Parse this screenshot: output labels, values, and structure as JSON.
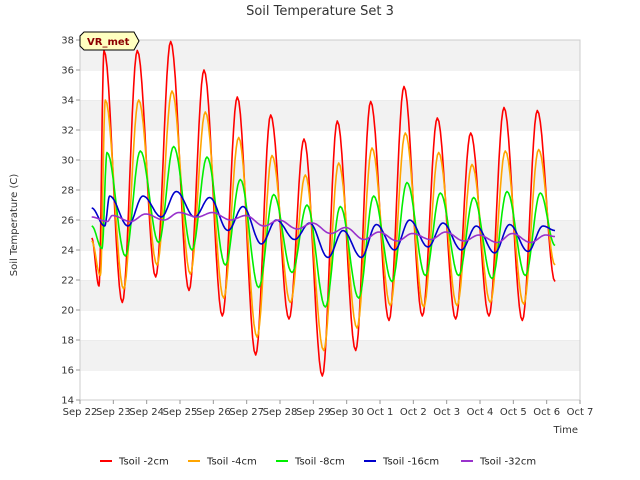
{
  "chart_data": {
    "type": "line",
    "title": "Soil Temperature Set 3",
    "site_label": "VR_met",
    "xlabel": "Time",
    "ylabel": "Soil Temperature (C)",
    "xlim": [
      "Sep 22",
      "Oct 7"
    ],
    "ylim": [
      14,
      38
    ],
    "y_ticks": [
      14,
      16,
      18,
      20,
      22,
      24,
      26,
      28,
      30,
      32,
      34,
      36,
      38
    ],
    "x_tick_labels": [
      "Sep 22",
      "Sep 23",
      "Sep 24",
      "Sep 25",
      "Sep 26",
      "Sep 27",
      "Sep 28",
      "Sep 29",
      "Sep 30",
      "Oct 1",
      "Oct 2",
      "Oct 3",
      "Oct 4",
      "Oct 5",
      "Oct 6",
      "Oct 7"
    ],
    "grid": "horizontal-bands",
    "legend_position": "bottom",
    "series": [
      {
        "name": "Tsoil -2cm",
        "color": "#ff0000",
        "min": [
          21.6,
          20.5,
          22.2,
          21.3,
          19.6,
          17.0,
          19.4,
          15.6,
          17.3,
          19.3,
          19.6,
          19.4,
          19.6,
          19.3
        ],
        "max": [
          37.3,
          37.3,
          37.9,
          36.0,
          34.2,
          33.0,
          31.4,
          32.6,
          33.9,
          34.9,
          32.8,
          31.8,
          33.5,
          33.3
        ],
        "start": 24.8,
        "end": 21.9
      },
      {
        "name": "Tsoil -4cm",
        "color": "#ffa500",
        "min": [
          22.3,
          21.4,
          23.0,
          22.4,
          20.8,
          18.2,
          20.5,
          17.3,
          18.8,
          20.3,
          20.2,
          20.3,
          20.5,
          20.4
        ],
        "max": [
          34.0,
          34.0,
          34.6,
          33.2,
          31.5,
          30.3,
          29.0,
          29.8,
          30.8,
          31.8,
          30.5,
          29.7,
          30.6,
          30.7
        ],
        "start": 24.6,
        "end": 23.0
      },
      {
        "name": "Tsoil -8cm",
        "color": "#00ee00",
        "min": [
          24.1,
          23.6,
          24.5,
          24.0,
          23.0,
          21.5,
          22.5,
          20.2,
          20.8,
          21.9,
          22.3,
          22.3,
          22.1,
          22.3
        ],
        "max": [
          30.5,
          30.6,
          30.9,
          30.2,
          28.7,
          27.7,
          27.0,
          26.9,
          27.6,
          28.5,
          27.8,
          27.5,
          27.9,
          27.8
        ],
        "start": 25.6,
        "end": 24.3
      },
      {
        "name": "Tsoil -16cm",
        "color": "#0000cc",
        "min": [
          25.6,
          25.6,
          26.2,
          26.2,
          25.3,
          24.4,
          24.7,
          23.5,
          23.5,
          24.0,
          24.2,
          24.0,
          23.8,
          23.9
        ],
        "max": [
          27.6,
          27.6,
          27.9,
          27.5,
          26.9,
          26.0,
          25.8,
          25.3,
          25.7,
          26.0,
          25.8,
          25.6,
          25.7,
          25.6
        ],
        "start": 26.8,
        "end": 25.3
      },
      {
        "name": "Tsoil -32cm",
        "color": "#9932cc",
        "min": [
          25.9,
          25.9,
          26.0,
          26.2,
          26.0,
          25.6,
          25.4,
          25.1,
          24.7,
          24.6,
          24.7,
          24.6,
          24.5,
          24.5
        ],
        "max": [
          26.3,
          26.4,
          26.5,
          26.5,
          26.3,
          26.0,
          25.8,
          25.5,
          25.2,
          25.1,
          25.2,
          25.0,
          25.1,
          25.0
        ],
        "start": 26.2,
        "end": 24.9
      }
    ]
  }
}
